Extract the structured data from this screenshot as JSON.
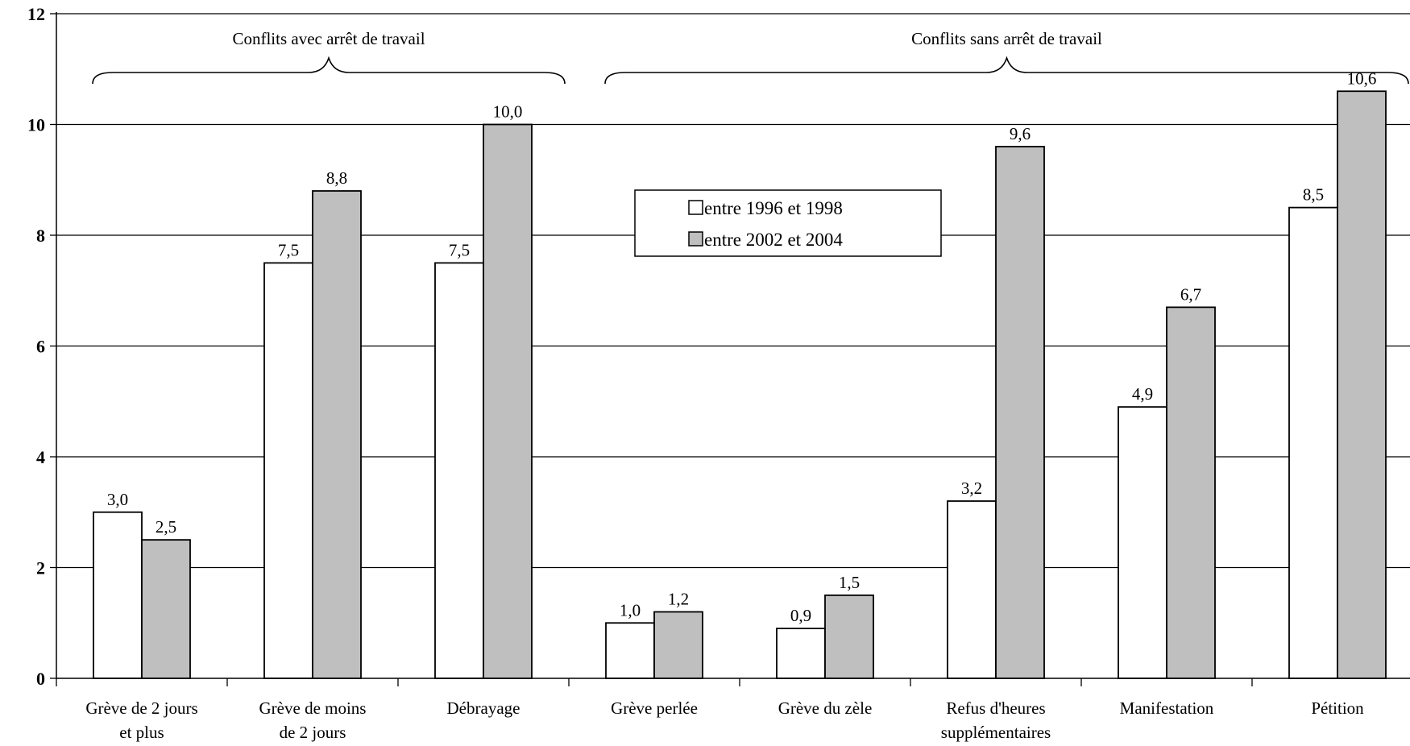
{
  "chart_data": {
    "type": "bar",
    "categories": [
      [
        "Grève de 2 jours",
        "et plus"
      ],
      [
        "Grève de moins",
        "de 2 jours"
      ],
      [
        "Débrayage"
      ],
      [
        "Grève perlée"
      ],
      [
        "Grève du zèle"
      ],
      [
        "Refus d'heures",
        "supplémentaires"
      ],
      [
        "Manifestation"
      ],
      [
        "Pétition"
      ]
    ],
    "series": [
      {
        "name": "entre 1996 et 1998",
        "color": "#ffffff",
        "values": [
          3.0,
          7.5,
          7.5,
          1.0,
          0.9,
          3.2,
          4.9,
          8.5
        ],
        "labels": [
          "3,0",
          "7,5",
          "7,5",
          "1,0",
          "0,9",
          "3,2",
          "4,9",
          "8,5"
        ]
      },
      {
        "name": "entre 2002 et 2004",
        "color": "#bfbfbf",
        "values": [
          2.5,
          8.8,
          10.0,
          1.2,
          1.5,
          9.6,
          6.7,
          10.6
        ],
        "labels": [
          "2,5",
          "8,8",
          "10,0",
          "1,2",
          "1,5",
          "9,6",
          "6,7",
          "10,6"
        ]
      }
    ],
    "yticks": [
      0,
      2,
      4,
      6,
      8,
      10,
      12
    ],
    "ylim": [
      0,
      12
    ],
    "grid": true,
    "legend_position": "center-top",
    "groups": [
      {
        "label": "Conflits avec arrêt de travail",
        "first": 0,
        "last": 2
      },
      {
        "label": "Conflits sans arrêt de travail",
        "first": 3,
        "last": 7
      }
    ]
  }
}
